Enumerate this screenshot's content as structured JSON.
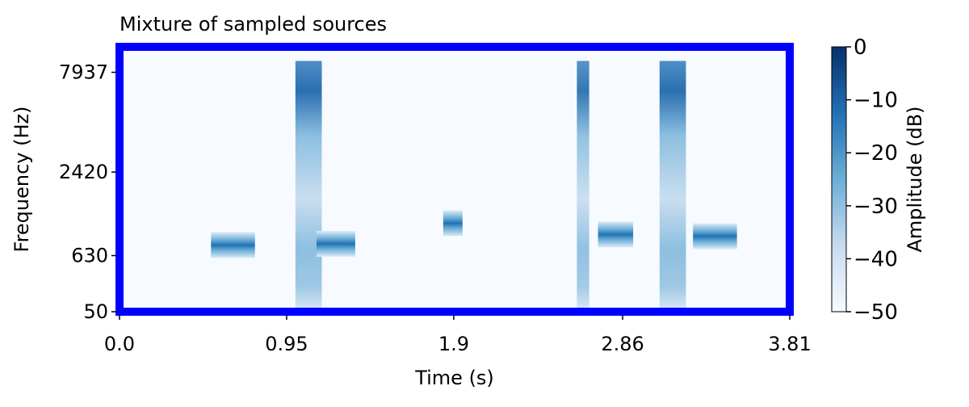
{
  "chart_data": {
    "type": "heatmap",
    "title": "Mixture of sampled sources",
    "xlabel": "Time (s)",
    "ylabel": "Frequency (Hz)",
    "xlim": [
      0.0,
      3.81
    ],
    "x_ticks": [
      0.0,
      0.95,
      1.9,
      2.86,
      3.81
    ],
    "x_tick_labels": [
      "0.0",
      "0.95",
      "1.9",
      "2.86",
      "3.81"
    ],
    "y_scale": "log-like (mel)",
    "y_tick_labels": [
      "50",
      "630",
      "2420",
      "7937"
    ],
    "colormap": "Blues",
    "colorbar": {
      "label": "Amplitude (dB)",
      "range": [
        -50,
        0
      ],
      "ticks": [
        0,
        -10,
        -20,
        -30,
        -40,
        -50
      ],
      "tick_labels": [
        "0",
        "−10",
        "−20",
        "−30",
        "−40",
        "−50"
      ]
    },
    "frame_color": "#0000ff",
    "background_db": -50,
    "events": [
      {
        "kind": "tone",
        "t_start": 0.52,
        "t_end": 0.77,
        "freq_hz": 780,
        "peak_db": -8
      },
      {
        "kind": "broadband",
        "t_start": 1.0,
        "t_end": 1.15,
        "low_hz": 50,
        "high_hz": 9000,
        "peak_db": -5
      },
      {
        "kind": "tone",
        "t_start": 1.12,
        "t_end": 1.34,
        "freq_hz": 800,
        "peak_db": -6
      },
      {
        "kind": "tone",
        "t_start": 1.84,
        "t_end": 1.95,
        "freq_hz": 1150,
        "peak_db": -6
      },
      {
        "kind": "broadband",
        "t_start": 2.6,
        "t_end": 2.67,
        "low_hz": 50,
        "high_hz": 9000,
        "peak_db": -10
      },
      {
        "kind": "tone",
        "t_start": 2.72,
        "t_end": 2.92,
        "freq_hz": 950,
        "peak_db": -6
      },
      {
        "kind": "broadband",
        "t_start": 3.07,
        "t_end": 3.22,
        "low_hz": 50,
        "high_hz": 9000,
        "peak_db": -3
      },
      {
        "kind": "tone",
        "t_start": 3.26,
        "t_end": 3.51,
        "freq_hz": 920,
        "peak_db": -6
      }
    ]
  }
}
